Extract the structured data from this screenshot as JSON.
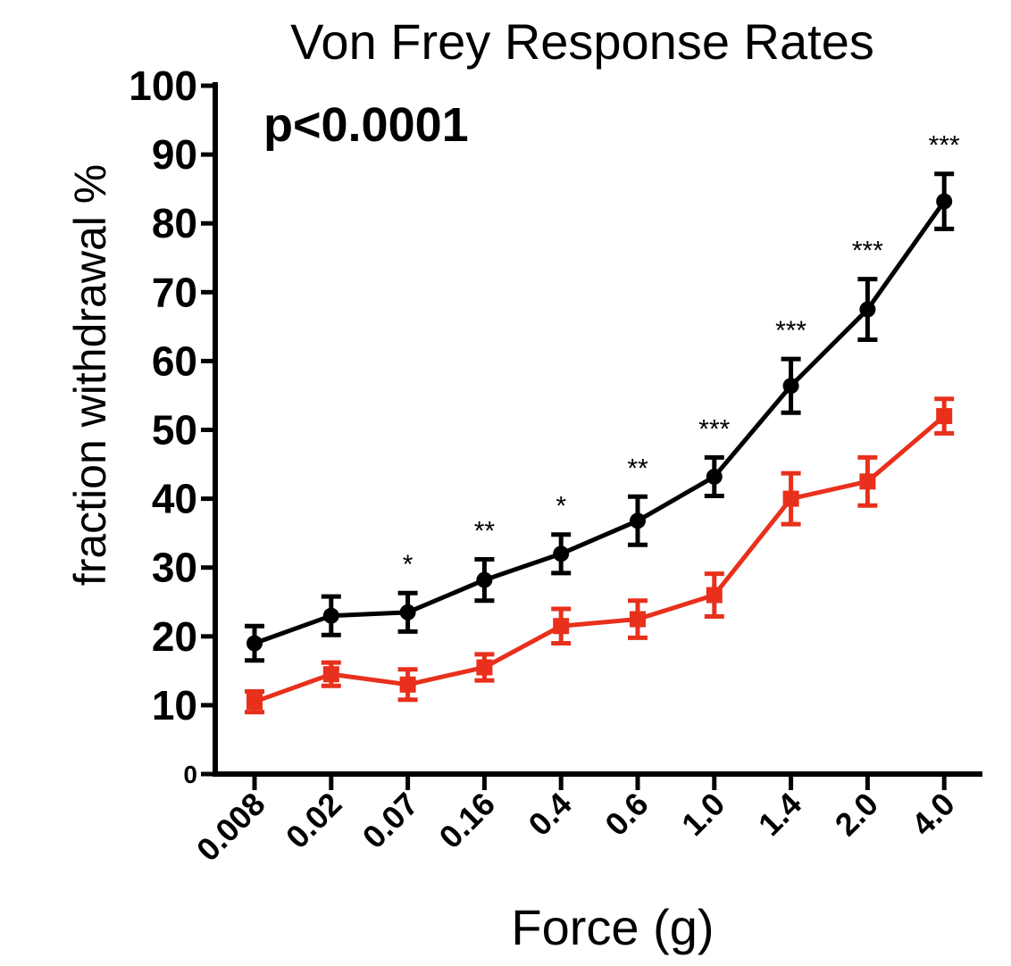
{
  "chart_data": {
    "type": "line",
    "title": "Von Frey Response Rates",
    "annotation": "p<0.0001",
    "xlabel": "Force (g)",
    "ylabel": "fraction withdrawal %",
    "categories": [
      "0.008",
      "0.02",
      "0.07",
      "0.16",
      "0.4",
      "0.6",
      "1.0",
      "1.4",
      "2.0",
      "4.0"
    ],
    "ylim": [
      0,
      100
    ],
    "yticks": [
      0,
      10,
      20,
      30,
      40,
      50,
      60,
      70,
      80,
      90,
      100
    ],
    "grid": false,
    "series": [
      {
        "color": "#000000",
        "marker": "circle",
        "values": [
          19,
          23,
          23.5,
          28.2,
          32,
          36.8,
          43.2,
          56.4,
          67.5,
          83.2
        ],
        "errors": [
          2.5,
          2.8,
          2.8,
          3,
          2.8,
          3.5,
          2.8,
          3.9,
          4.4,
          4
        ],
        "significance": [
          "",
          "",
          "*",
          "**",
          "*",
          "**",
          "***",
          "***",
          "***",
          "***"
        ]
      },
      {
        "color": "#e8301c",
        "marker": "square",
        "values": [
          10.5,
          14.5,
          13,
          15.5,
          21.5,
          22.5,
          26,
          40,
          42.5,
          52
        ],
        "errors": [
          1.5,
          1.7,
          2.2,
          1.9,
          2.5,
          2.7,
          3.1,
          3.7,
          3.5,
          2.5
        ]
      }
    ]
  }
}
